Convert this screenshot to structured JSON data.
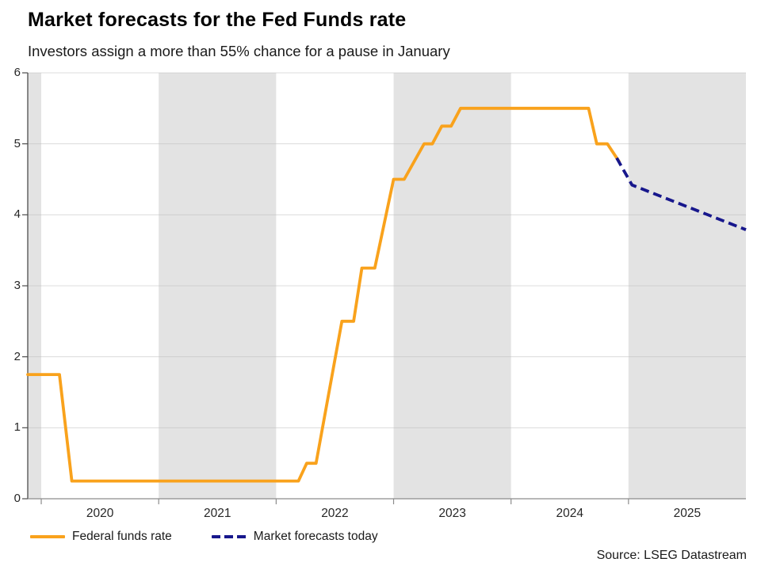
{
  "source": "Source: LSEG Datastream",
  "chart_data": {
    "type": "line",
    "title": "Market forecasts for the Fed Funds rate",
    "subtitle": "Investors assign a more than 55% chance for a pause in January",
    "xlabel": "",
    "ylabel": "",
    "x_axis": {
      "range": [
        2019.885,
        2026.0
      ],
      "ticks": [
        2020,
        2021,
        2022,
        2023,
        2024,
        2025
      ],
      "year_labels": [
        "2020",
        "2021",
        "2022",
        "2023",
        "2024",
        "2025"
      ]
    },
    "y_axis": {
      "range": [
        0,
        6
      ],
      "ticks": [
        0,
        1,
        2,
        3,
        4,
        5,
        6
      ],
      "tick_labels": [
        "0",
        "1",
        "2",
        "3",
        "4",
        "5",
        "6"
      ]
    },
    "shaded_bands": [
      [
        2019.885,
        2020.0
      ],
      [
        2021.0,
        2022.0
      ],
      [
        2023.0,
        2024.0
      ],
      [
        2025.0,
        2026.0
      ]
    ],
    "grid": true,
    "legend_position": "bottom-left",
    "colors": {
      "band": "#E3E3E3",
      "grid": "#BFBFBF",
      "y_axis_line": "#4D4D4D",
      "x_axis_line": "#8C8C8C",
      "tick_text": "#262626"
    },
    "series": [
      {
        "name": "Federal funds rate",
        "color": "#F9A21C",
        "dash": false,
        "points": [
          [
            2019.885,
            1.75
          ],
          [
            2020.155,
            1.75
          ],
          [
            2020.26,
            0.25
          ],
          [
            2022.19,
            0.25
          ],
          [
            2022.26,
            0.5
          ],
          [
            2022.34,
            0.5
          ],
          [
            2022.56,
            2.5
          ],
          [
            2022.66,
            2.5
          ],
          [
            2022.73,
            3.25
          ],
          [
            2022.84,
            3.25
          ],
          [
            2023.0,
            4.5
          ],
          [
            2023.09,
            4.5
          ],
          [
            2023.26,
            5.0
          ],
          [
            2023.33,
            5.0
          ],
          [
            2023.41,
            5.25
          ],
          [
            2023.49,
            5.25
          ],
          [
            2023.57,
            5.5
          ],
          [
            2024.66,
            5.5
          ],
          [
            2024.73,
            5.0
          ],
          [
            2024.82,
            5.0
          ],
          [
            2024.92,
            4.75
          ]
        ]
      },
      {
        "name": "Market forecasts today",
        "color": "#17178C",
        "dash": true,
        "points": [
          [
            2024.9,
            4.8
          ],
          [
            2025.03,
            4.42
          ],
          [
            2026.0,
            3.79
          ]
        ]
      }
    ]
  }
}
